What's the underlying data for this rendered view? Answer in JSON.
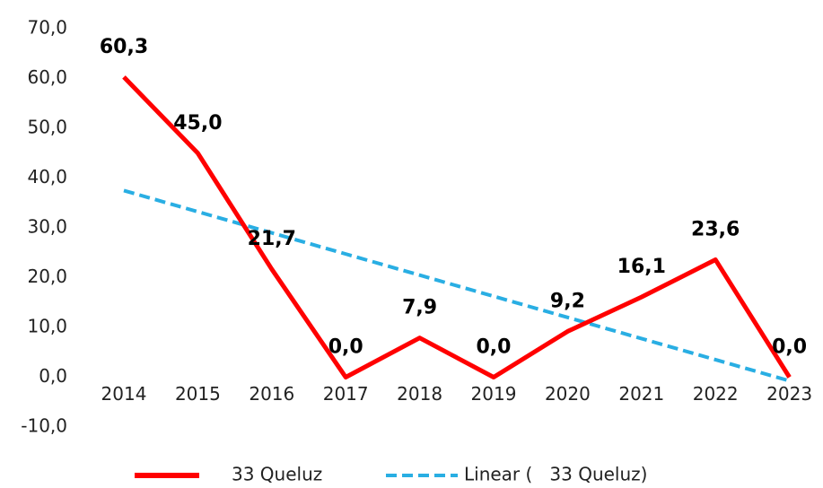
{
  "chart_data": {
    "type": "line",
    "categories": [
      "2014",
      "2015",
      "2016",
      "2017",
      "2018",
      "2019",
      "2020",
      "2021",
      "2022",
      "2023"
    ],
    "series": [
      {
        "name": "33 Queluz",
        "color": "#ff0000",
        "values": [
          60.3,
          45.0,
          21.7,
          0.0,
          7.9,
          0.0,
          9.2,
          16.1,
          23.6,
          0.0
        ],
        "value_labels": [
          "60,3",
          "45,0",
          "21,7",
          "0,0",
          "7,9",
          "0,0",
          "9,2",
          "16,1",
          "23,6",
          "0,0"
        ]
      },
      {
        "name": "Linear (   33 Queluz)",
        "color": "#29aee3",
        "dashed": true,
        "values": [
          37.49,
          33.24,
          28.99,
          24.75,
          20.5,
          16.26,
          12.01,
          7.76,
          3.52,
          -0.73
        ]
      }
    ],
    "ylim": [
      -10,
      70
    ],
    "yticks": [
      {
        "value": -10,
        "label": "-10,0"
      },
      {
        "value": 0,
        "label": "0,0"
      },
      {
        "value": 10,
        "label": "10,0"
      },
      {
        "value": 20,
        "label": "20,0"
      },
      {
        "value": 30,
        "label": "30,0"
      },
      {
        "value": 40,
        "label": "40,0"
      },
      {
        "value": 50,
        "label": "50,0"
      },
      {
        "value": 60,
        "label": "60,0"
      },
      {
        "value": 70,
        "label": "70,0"
      }
    ],
    "grid": false,
    "legend": "bottom"
  }
}
